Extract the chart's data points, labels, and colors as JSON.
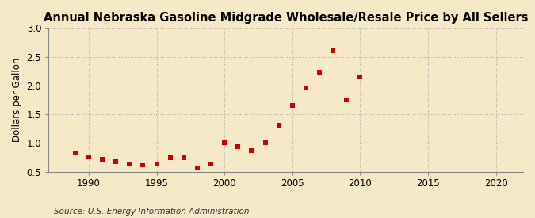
{
  "title": "Annual Nebraska Gasoline Midgrade Wholesale/Resale Price by All Sellers",
  "ylabel": "Dollars per Gallon",
  "source": "Source: U.S. Energy Information Administration",
  "background_color": "#f5e9c8",
  "plot_bg_color": "#f5e9c8",
  "data_color": "#cc0000",
  "years": [
    1989,
    1990,
    1991,
    1992,
    1993,
    1994,
    1995,
    1996,
    1997,
    1998,
    1999,
    2000,
    2001,
    2002,
    2003,
    2004,
    2005,
    2006,
    2007,
    2008,
    2009,
    2010
  ],
  "values": [
    0.82,
    0.76,
    0.71,
    0.67,
    0.63,
    0.62,
    0.64,
    0.74,
    0.74,
    0.57,
    0.64,
    1.0,
    0.94,
    0.87,
    1.01,
    1.31,
    1.65,
    1.95,
    2.23,
    2.6,
    1.75,
    2.15
  ],
  "xlim": [
    1987,
    2022
  ],
  "ylim": [
    0.5,
    3.0
  ],
  "xticks": [
    1990,
    1995,
    2000,
    2005,
    2010,
    2015,
    2020
  ],
  "yticks": [
    0.5,
    1.0,
    1.5,
    2.0,
    2.5,
    3.0
  ],
  "title_fontsize": 10.5,
  "label_fontsize": 8.5,
  "tick_fontsize": 8.5,
  "source_fontsize": 7.5,
  "grid_color": "#aaaaaa",
  "spine_color": "#888888"
}
